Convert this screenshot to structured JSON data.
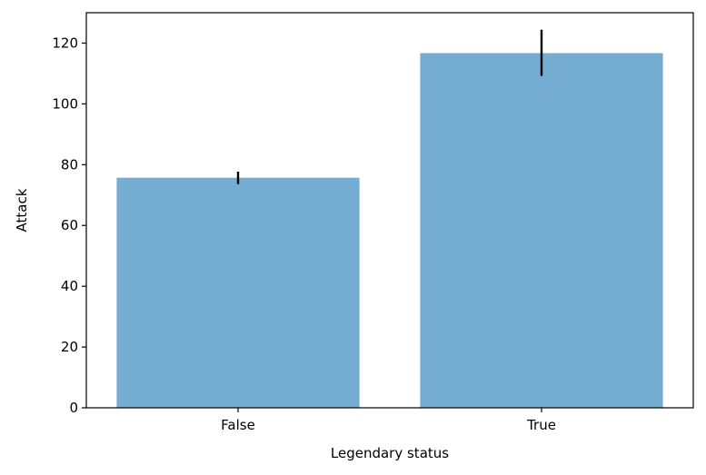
{
  "chart_data": {
    "type": "bar",
    "title": "",
    "xlabel": "Legendary status",
    "ylabel": "Attack",
    "categories": [
      "False",
      "True"
    ],
    "values": [
      75.7,
      116.7
    ],
    "error_low": [
      73.6,
      109.2
    ],
    "error_high": [
      77.7,
      124.4
    ],
    "ylim": [
      0,
      130
    ],
    "yticks": [
      0,
      20,
      40,
      60,
      80,
      100,
      120
    ],
    "bar_color": "#75acd1",
    "errorbar_color": "#000000",
    "grid": false,
    "legend": "none"
  }
}
